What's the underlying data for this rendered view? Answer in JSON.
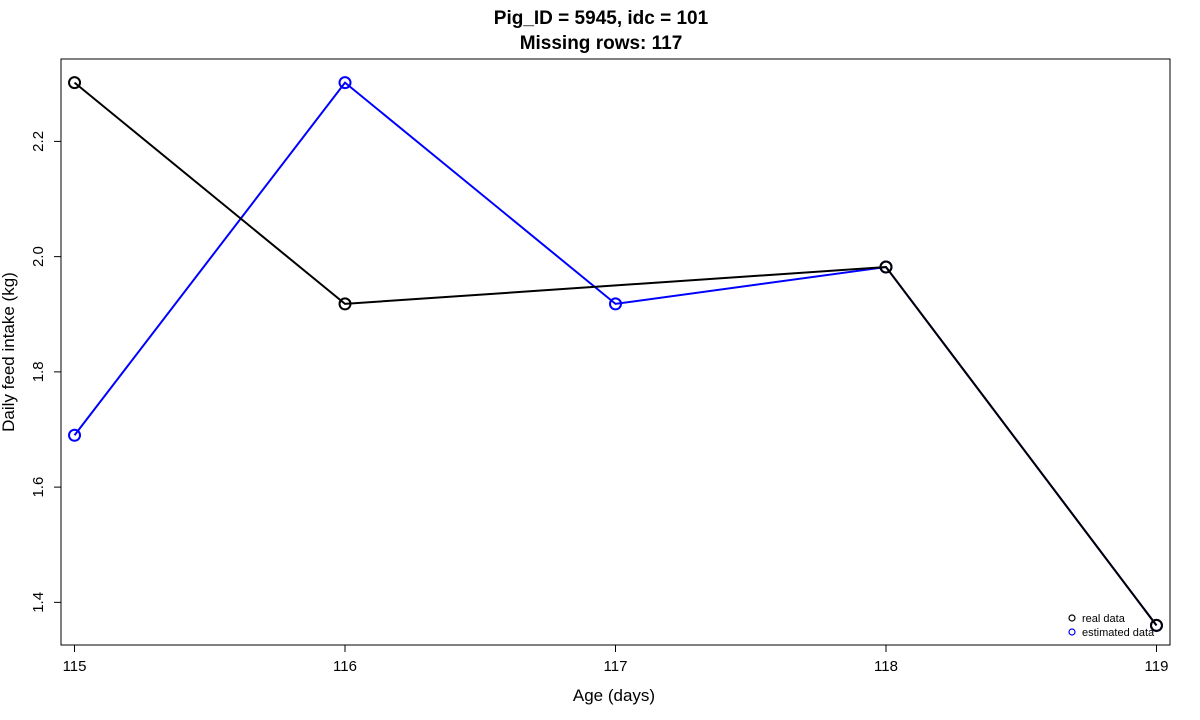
{
  "chart_data": {
    "type": "line",
    "title": "Pig_ID = 5945, idc = 101",
    "subtitle": "Missing rows: 117",
    "xlabel": "Age (days)",
    "ylabel": "Daily feed intake (kg)",
    "xlim": [
      114.95,
      119.05
    ],
    "ylim": [
      1.326,
      2.343
    ],
    "xticks": [
      "115",
      "116",
      "117",
      "118",
      "119"
    ],
    "yticks": [
      "1.4",
      "1.6",
      "1.8",
      "2.0",
      "2.2"
    ],
    "grid": false,
    "legend_position": "bottom-right",
    "series": [
      {
        "name": "real data",
        "color": "#000000",
        "marker": "open-circle",
        "x": [
          115,
          116,
          118,
          119
        ],
        "y": [
          2.302,
          1.918,
          1.982,
          1.36
        ]
      },
      {
        "name": "estimated data",
        "color": "#0000ff",
        "marker": "open-circle",
        "x": [
          115,
          116,
          117,
          118,
          119
        ],
        "y": [
          1.69,
          2.302,
          1.918,
          1.982,
          1.36
        ]
      }
    ]
  }
}
